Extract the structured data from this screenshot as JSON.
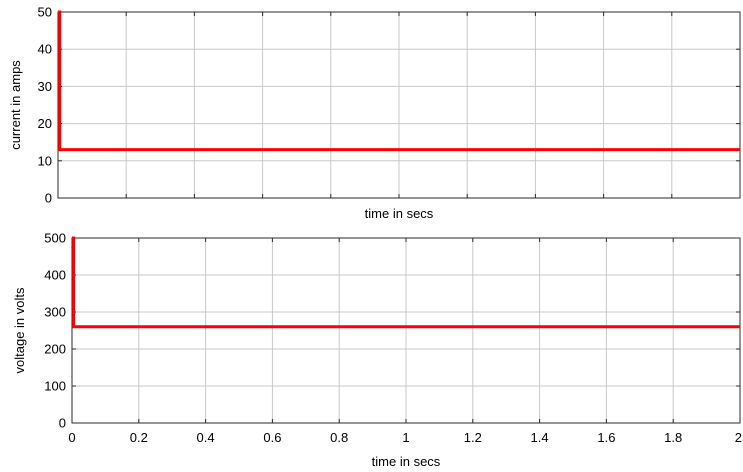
{
  "chart_data": [
    {
      "type": "line",
      "title": "",
      "xlabel": "time in secs",
      "ylabel": "current in amps",
      "xlim": [
        0,
        2
      ],
      "ylim": [
        0,
        50
      ],
      "xticks": [
        0,
        0.2,
        0.4,
        0.6,
        0.8,
        1,
        1.2,
        1.4,
        1.6,
        1.8,
        2
      ],
      "xtick_labels_visible": false,
      "yticks": [
        0,
        10,
        20,
        30,
        40,
        50
      ],
      "grid": true,
      "color": "#ff0000",
      "series": [
        {
          "x": [
            0,
            0.005,
            0.005,
            2
          ],
          "y": [
            50,
            50,
            13,
            13
          ]
        }
      ]
    },
    {
      "type": "line",
      "title": "",
      "xlabel": "time in secs",
      "ylabel": "voltage in volts",
      "xlim": [
        0,
        2
      ],
      "ylim": [
        0,
        500
      ],
      "xticks": [
        0,
        0.2,
        0.4,
        0.6,
        0.8,
        1,
        1.2,
        1.4,
        1.6,
        1.8,
        2
      ],
      "xtick_labels_visible": true,
      "yticks": [
        0,
        100,
        200,
        300,
        400,
        500
      ],
      "grid": true,
      "color": "#ff0000",
      "series": [
        {
          "x": [
            0,
            0.005,
            0.005,
            2
          ],
          "y": [
            500,
            500,
            260,
            260
          ]
        }
      ]
    }
  ]
}
